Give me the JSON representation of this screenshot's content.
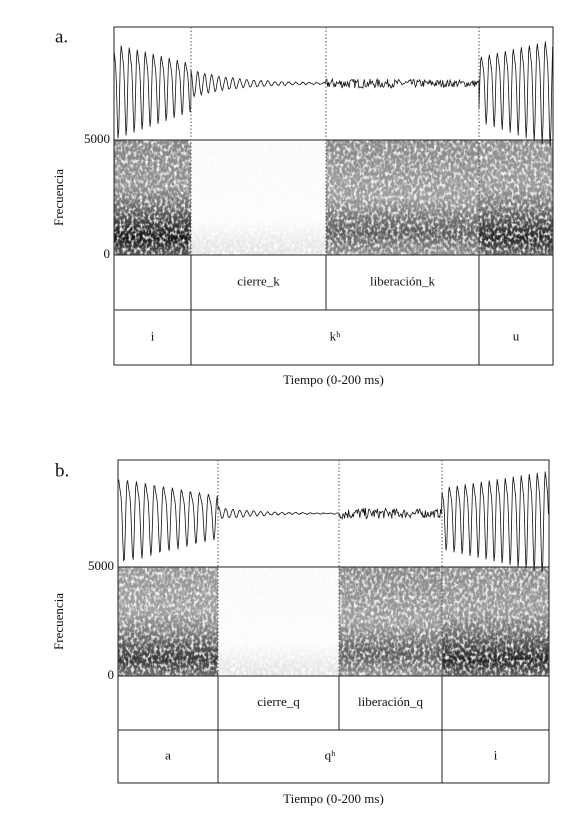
{
  "panels": [
    {
      "label": "a.",
      "y_axis_label": "Frecuencia",
      "y_top": "5000",
      "y_bottom": "0",
      "tier1": [
        "cierre_k",
        "liberación_k"
      ],
      "tier2": [
        "i",
        "kʰ",
        "u"
      ],
      "x_axis_label": "Tiempo (0-200 ms)"
    },
    {
      "label": "b.",
      "y_axis_label": "Frecuencia",
      "y_top": "5000",
      "y_bottom": "0",
      "tier1": [
        "cierre_q",
        "liberación_q"
      ],
      "tier2": [
        "a",
        "qʰ",
        "i"
      ],
      "x_axis_label": "Tiempo (0-200 ms)"
    }
  ]
}
